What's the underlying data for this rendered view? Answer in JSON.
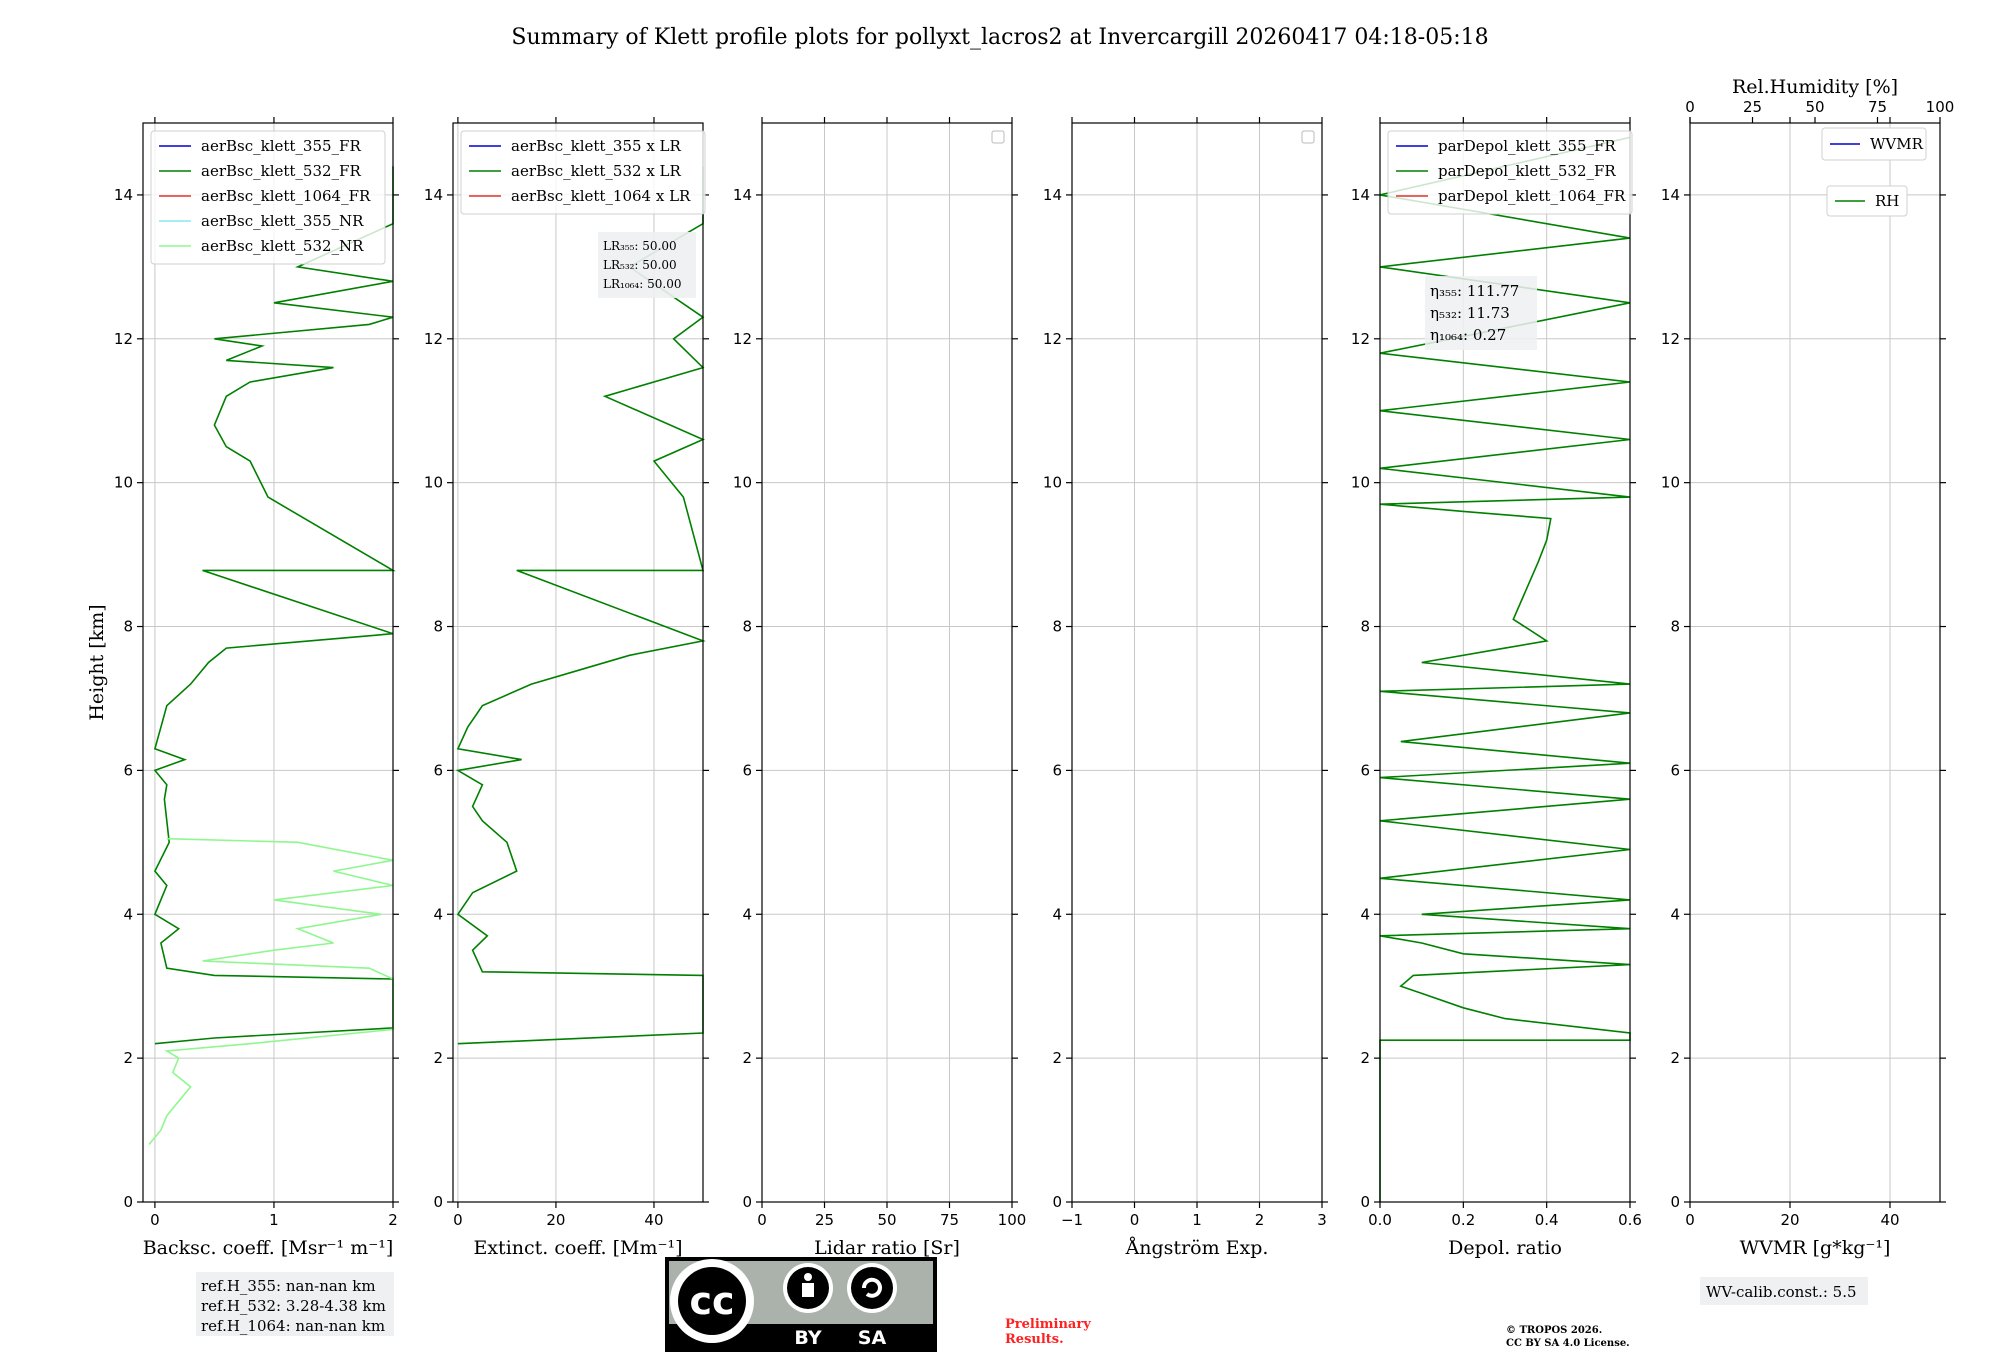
{
  "title": "Summary of Klett profile plots for pollyxt_lacros2 at Invercargill 20260417 04:18-05:18",
  "colors": {
    "green": "#008000",
    "lightgreen": "#8ff78f",
    "blue": "#0000cd",
    "red": "#e3322b",
    "cyan": "#88e8ee"
  },
  "chart_data": [
    {
      "id": "backscatter",
      "type": "line",
      "xlabel": "Backsc. coeff. [Msr⁻¹ m⁻¹]",
      "ylabel": "Height [km]",
      "xlim": [
        -0.1,
        2
      ],
      "ylim": [
        0,
        15
      ],
      "xticks": [
        0,
        1,
        2
      ],
      "xticklabels": [
        "0",
        "1",
        "2"
      ],
      "yticks": [
        0,
        2,
        4,
        6,
        8,
        10,
        12,
        14
      ],
      "yticklabels": [
        "0",
        "2",
        "4",
        "6",
        "8",
        "10",
        "12",
        "14"
      ],
      "legend": [
        "aerBsc_klett_355_FR",
        "aerBsc_klett_532_FR",
        "aerBsc_klett_1064_FR",
        "aerBsc_klett_355_NR",
        "aerBsc_klett_532_NR"
      ],
      "legend_colors": [
        "#0000cd",
        "#008000",
        "#e3322b",
        "#88e8ee",
        "#8ff78f"
      ],
      "series": [
        {
          "name": "aerBsc_klett_532_FR",
          "color": "#008000",
          "points": [
            [
              0,
              2.2
            ],
            [
              0.5,
              2.28
            ],
            [
              2,
              2.42
            ],
            [
              2.0,
              3.1
            ],
            [
              0.5,
              3.15
            ],
            [
              0.1,
              3.25
            ],
            [
              0.05,
              3.6
            ],
            [
              0.2,
              3.8
            ],
            [
              0.0,
              4.0
            ],
            [
              0.1,
              4.4
            ],
            [
              0.0,
              4.6
            ],
            [
              0.12,
              5.0
            ],
            [
              0.1,
              5.3
            ],
            [
              0.08,
              5.6
            ],
            [
              0.1,
              5.8
            ],
            [
              0.0,
              6.0
            ],
            [
              0.25,
              6.15
            ],
            [
              0.0,
              6.3
            ],
            [
              0.05,
              6.6
            ],
            [
              0.1,
              6.9
            ],
            [
              0.3,
              7.2
            ],
            [
              0.45,
              7.5
            ],
            [
              0.6,
              7.7
            ],
            [
              2,
              7.9
            ],
            [
              0.4,
              8.78
            ],
            [
              2,
              8.78
            ],
            [
              0.95,
              9.8
            ],
            [
              0.8,
              10.3
            ],
            [
              0.6,
              10.5
            ],
            [
              0.5,
              10.8
            ],
            [
              0.6,
              11.2
            ],
            [
              0.8,
              11.4
            ],
            [
              1.5,
              11.6
            ],
            [
              0.6,
              11.7
            ],
            [
              0.9,
              11.9
            ],
            [
              0.5,
              12.0
            ],
            [
              1.8,
              12.2
            ],
            [
              2,
              12.3
            ],
            [
              1.0,
              12.5
            ],
            [
              2,
              12.8
            ],
            [
              1.2,
              13.0
            ],
            [
              2,
              13.6
            ],
            [
              2,
              14.4
            ]
          ]
        },
        {
          "name": "aerBsc_klett_532_NR",
          "color": "#8ff78f",
          "points": [
            [
              -0.05,
              0.8
            ],
            [
              0.05,
              1.0
            ],
            [
              0.1,
              1.2
            ],
            [
              0.2,
              1.4
            ],
            [
              0.3,
              1.6
            ],
            [
              0.15,
              1.8
            ],
            [
              0.2,
              2.0
            ],
            [
              0.1,
              2.1
            ],
            [
              0.8,
              2.2
            ],
            [
              2,
              2.4
            ],
            [
              2,
              3.1
            ],
            [
              1.8,
              3.25
            ],
            [
              0.4,
              3.35
            ],
            [
              1.0,
              3.5
            ],
            [
              1.5,
              3.6
            ],
            [
              1.2,
              3.8
            ],
            [
              1.9,
              4.0
            ],
            [
              1.0,
              4.2
            ],
            [
              2,
              4.4
            ],
            [
              1.5,
              4.6
            ],
            [
              2,
              4.75
            ],
            [
              1.2,
              5.0
            ],
            [
              0.1,
              5.05
            ]
          ]
        }
      ]
    },
    {
      "id": "extinction",
      "type": "line",
      "xlabel": "Extinct. coeff. [Mm⁻¹]",
      "xlim": [
        -1,
        50
      ],
      "ylim": [
        0,
        15
      ],
      "xticks": [
        0,
        20,
        40
      ],
      "xticklabels": [
        "0",
        "20",
        "40"
      ],
      "yticks": [
        0,
        2,
        4,
        6,
        8,
        10,
        12,
        14
      ],
      "yticklabels": [
        "0",
        "2",
        "4",
        "6",
        "8",
        "10",
        "12",
        "14"
      ],
      "legend": [
        "aerBsc_klett_355 x LR",
        "aerBsc_klett_532 x LR",
        "aerBsc_klett_1064 x LR"
      ],
      "legend_colors": [
        "#0000cd",
        "#008000",
        "#e3322b"
      ],
      "series": [
        {
          "name": "aerBsc_klett_532 x LR",
          "color": "#008000",
          "points": [
            [
              0,
              2.2
            ],
            [
              50,
              2.35
            ],
            [
              50,
              3.15
            ],
            [
              5,
              3.2
            ],
            [
              3,
              3.5
            ],
            [
              6,
              3.7
            ],
            [
              0,
              4.0
            ],
            [
              3,
              4.3
            ],
            [
              12,
              4.6
            ],
            [
              10,
              5.0
            ],
            [
              5,
              5.3
            ],
            [
              3,
              5.5
            ],
            [
              5,
              5.8
            ],
            [
              0,
              6.0
            ],
            [
              13,
              6.15
            ],
            [
              0,
              6.3
            ],
            [
              2,
              6.6
            ],
            [
              5,
              6.9
            ],
            [
              15,
              7.2
            ],
            [
              25,
              7.4
            ],
            [
              35,
              7.6
            ],
            [
              50,
              7.8
            ],
            [
              12,
              8.78
            ],
            [
              50,
              8.78
            ],
            [
              46,
              9.8
            ],
            [
              40,
              10.3
            ],
            [
              50,
              10.6
            ],
            [
              30,
              11.2
            ],
            [
              50,
              11.6
            ],
            [
              44,
              12.0
            ],
            [
              50,
              12.3
            ],
            [
              35,
              13.0
            ],
            [
              50,
              13.6
            ],
            [
              50,
              14.4
            ]
          ]
        }
      ],
      "lidar_ratio_labels": [
        "LR₃₅₅: 50.00",
        "LR₅₃₂: 50.00",
        "LR₁₀₆₄: 50.00"
      ]
    },
    {
      "id": "lidar_ratio",
      "type": "line",
      "xlabel": "Lidar ratio [Sr]",
      "xlim": [
        0,
        100
      ],
      "ylim": [
        0,
        15
      ],
      "xticks": [
        0,
        25,
        50,
        75,
        100
      ],
      "xticklabels": [
        "0",
        "25",
        "50",
        "75",
        "100"
      ],
      "yticks": [
        0,
        2,
        4,
        6,
        8,
        10,
        12,
        14
      ],
      "yticklabels": [
        "0",
        "2",
        "4",
        "6",
        "8",
        "10",
        "12",
        "14"
      ],
      "series": []
    },
    {
      "id": "angstrom",
      "type": "line",
      "xlabel": "Ångström Exp.",
      "xlim": [
        -1,
        3
      ],
      "ylim": [
        0,
        15
      ],
      "xticks": [
        -1,
        0,
        1,
        2,
        3
      ],
      "xticklabels": [
        "−1",
        "0",
        "1",
        "2",
        "3"
      ],
      "yticks": [
        0,
        2,
        4,
        6,
        8,
        10,
        12,
        14
      ],
      "yticklabels": [
        "0",
        "2",
        "4",
        "6",
        "8",
        "10",
        "12",
        "14"
      ],
      "series": []
    },
    {
      "id": "depol",
      "type": "line",
      "xlabel": "Depol. ratio",
      "xlim": [
        0,
        0.6
      ],
      "ylim": [
        0,
        15
      ],
      "xticks": [
        0,
        0.2,
        0.4,
        0.6
      ],
      "xticklabels": [
        "0.0",
        "0.2",
        "0.4",
        "0.6"
      ],
      "yticks": [
        0,
        2,
        4,
        6,
        8,
        10,
        12,
        14
      ],
      "yticklabels": [
        "0",
        "2",
        "4",
        "6",
        "8",
        "10",
        "12",
        "14"
      ],
      "legend": [
        "parDepol_klett_355_FR",
        "parDepol_klett_532_FR",
        "parDepol_klett_1064_FR"
      ],
      "legend_colors": [
        "#0000cd",
        "#008000",
        "#e3322b"
      ],
      "series": [
        {
          "name": "parDepol_klett_532_FR",
          "color": "#008000",
          "points": [
            [
              0.0,
              0.0
            ],
            [
              0.0,
              2.25
            ],
            [
              0.6,
              2.25
            ],
            [
              0.6,
              2.35
            ],
            [
              0.3,
              2.55
            ],
            [
              0.2,
              2.7
            ],
            [
              0.1,
              2.9
            ],
            [
              0.05,
              3.0
            ],
            [
              0.08,
              3.15
            ],
            [
              0.6,
              3.3
            ],
            [
              0.2,
              3.45
            ],
            [
              0.1,
              3.6
            ],
            [
              0.0,
              3.7
            ],
            [
              0.6,
              3.8
            ],
            [
              0.1,
              4.0
            ],
            [
              0.6,
              4.2
            ],
            [
              0.0,
              4.5
            ],
            [
              0.6,
              4.9
            ],
            [
              0.0,
              5.3
            ],
            [
              0.6,
              5.6
            ],
            [
              0.0,
              5.9
            ],
            [
              0.6,
              6.1
            ],
            [
              0.05,
              6.4
            ],
            [
              0.6,
              6.8
            ],
            [
              0.0,
              7.1
            ],
            [
              0.6,
              7.2
            ],
            [
              0.1,
              7.5
            ],
            [
              0.3,
              7.7
            ],
            [
              0.4,
              7.8
            ],
            [
              0.32,
              8.1
            ],
            [
              0.35,
              8.5
            ],
            [
              0.38,
              8.9
            ],
            [
              0.4,
              9.2
            ],
            [
              0.41,
              9.5
            ],
            [
              0.2,
              9.6
            ],
            [
              0.0,
              9.7
            ],
            [
              0.6,
              9.8
            ],
            [
              0.0,
              10.2
            ],
            [
              0.6,
              10.6
            ],
            [
              0.0,
              11.0
            ],
            [
              0.6,
              11.4
            ],
            [
              0.0,
              11.8
            ],
            [
              0.6,
              12.5
            ],
            [
              0.0,
              13.0
            ],
            [
              0.6,
              13.4
            ],
            [
              0.0,
              14.0
            ],
            [
              0.6,
              14.8
            ]
          ]
        }
      ],
      "eta_labels": [
        "η₃₅₅: 111.77",
        "η₅₃₂: 11.73",
        "η₁₀₆₄: 0.27"
      ]
    },
    {
      "id": "wvmr",
      "type": "line",
      "xlabel": "WVMR [g*kg⁻¹]",
      "xlim": [
        0,
        50
      ],
      "ylim": [
        0,
        15
      ],
      "xticks": [
        0,
        20,
        40
      ],
      "xticklabels": [
        "0",
        "20",
        "40"
      ],
      "yticks": [
        0,
        2,
        4,
        6,
        8,
        10,
        12,
        14
      ],
      "yticklabels": [
        "0",
        "2",
        "4",
        "6",
        "8",
        "10",
        "12",
        "14"
      ],
      "top_xlabel": "Rel.Humidity [%]",
      "top_xlim": [
        0,
        100
      ],
      "top_xticks": [
        0,
        25,
        50,
        75,
        100
      ],
      "top_xticklabels": [
        "0",
        "25",
        "50",
        "75",
        "100"
      ],
      "legend": [
        "WVMR",
        "RH"
      ],
      "legend_colors": [
        "#0000cd",
        "#008000"
      ],
      "series": []
    }
  ],
  "footer": {
    "ref_heights": [
      "ref.H_355: nan-nan km",
      "ref.H_532: 3.28-4.38 km",
      "ref.H_1064: nan-nan km"
    ],
    "license_logo_text": [
      "cc",
      "BY",
      "SA"
    ],
    "preliminary": [
      "Preliminary",
      "Results."
    ],
    "copyright": [
      "© TROPOS 2026.",
      "CC BY SA 4.0 License."
    ],
    "wv_calib": "WV-calib.const.: 5.5"
  }
}
